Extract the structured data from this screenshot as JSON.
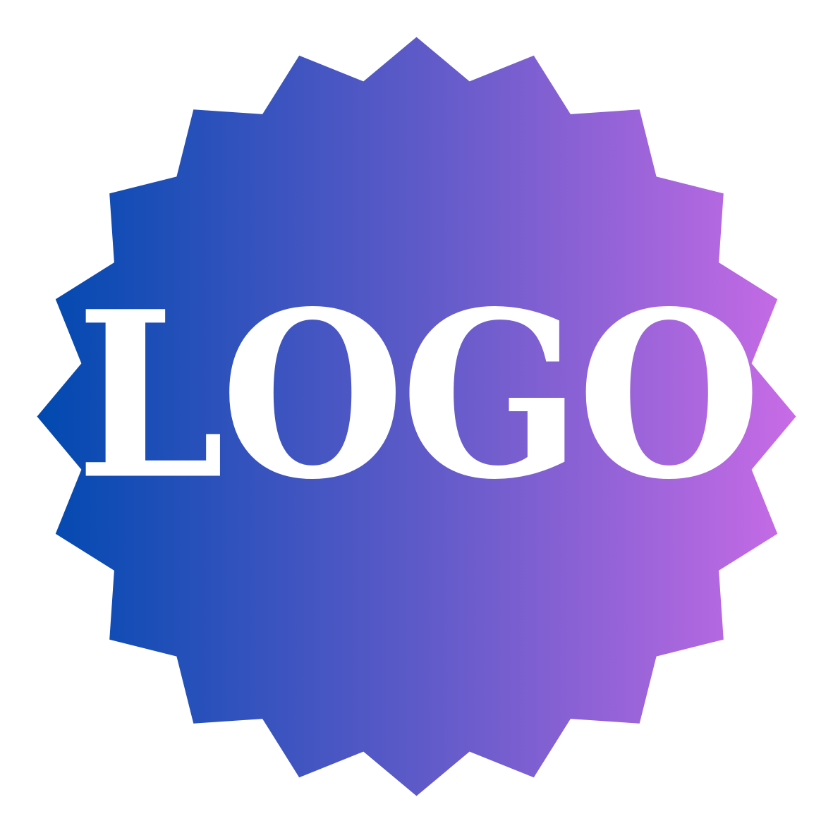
{
  "logo": {
    "text": "LOGO",
    "text_color": "#ffffff"
  },
  "badge": {
    "shape": "starburst-20-point",
    "gradient_start": "#0049B0",
    "gradient_mid": "#5D5AC8",
    "gradient_end": "#C86BE6"
  },
  "background_color": "#ffffff"
}
